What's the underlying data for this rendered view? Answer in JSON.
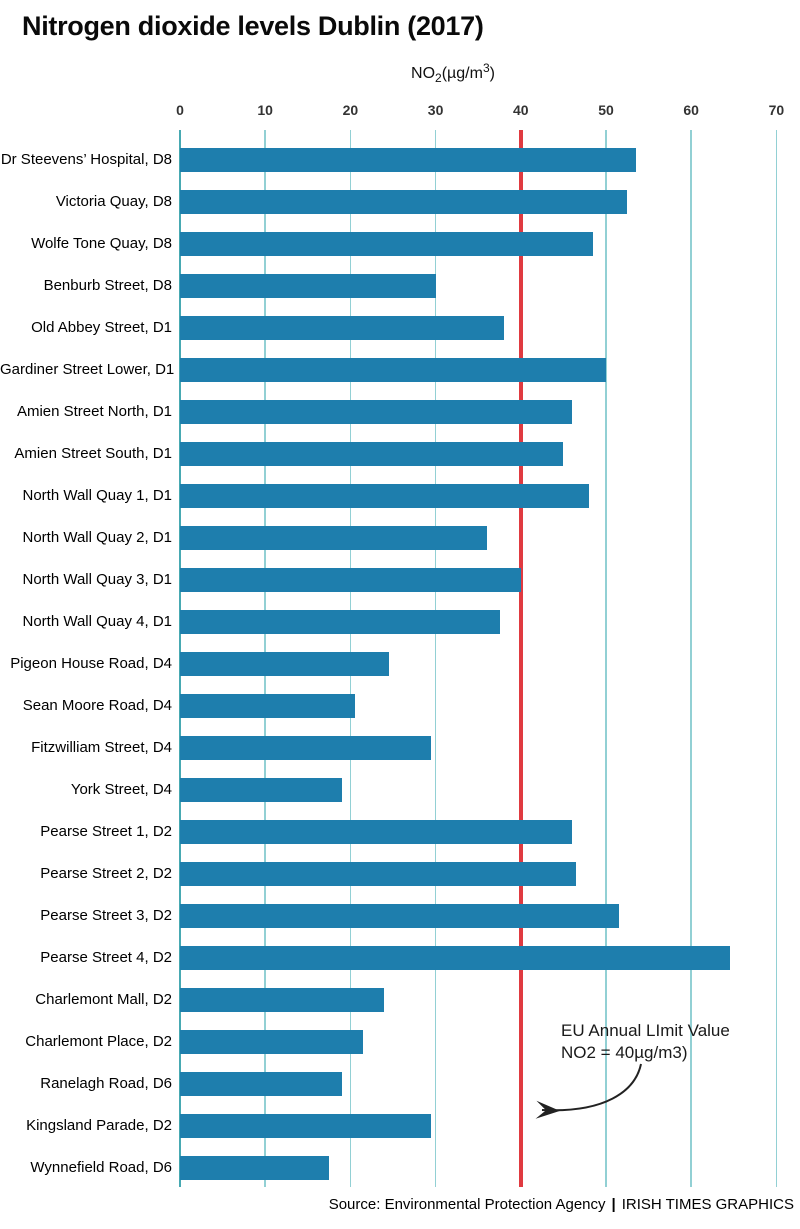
{
  "title": "Nitrogen dioxide levels Dublin (2017)",
  "axis_title": {
    "prefix": "NO",
    "sub": "2",
    "mid": "(µg/m",
    "sup": "3",
    "suffix": ")"
  },
  "chart_data": {
    "type": "bar",
    "orientation": "horizontal",
    "title": "Nitrogen dioxide levels Dublin (2017)",
    "xlabel": "NO2(µg/m3)",
    "xlim": [
      0,
      70
    ],
    "ticks": [
      0,
      10,
      20,
      30,
      40,
      50,
      60,
      70
    ],
    "grid": true,
    "bar_color": "#1e7ead",
    "gridline_color": "#92d0d4",
    "categories": [
      "Dr Steevens’ Hospital, D8",
      "Victoria Quay, D8",
      "Wolfe Tone Quay, D8",
      "Benburb Street, D8",
      "Old Abbey Street, D1",
      "Gardiner Street Lower, D1",
      "Amien Street North, D1",
      "Amien Street South, D1",
      "North Wall Quay 1, D1",
      "North Wall Quay 2, D1",
      "North Wall Quay 3, D1",
      "North Wall Quay 4, D1",
      "Pigeon House Road, D4",
      "Sean Moore Road, D4",
      "Fitzwilliam Street, D4",
      "York Street, D4",
      "Pearse Street 1, D2",
      "Pearse Street 2, D2",
      "Pearse Street 3, D2",
      "Pearse Street 4, D2",
      "Charlemont Mall, D2",
      "Charlemont Place, D2",
      "Ranelagh Road, D6",
      "Kingsland Parade, D2",
      "Wynnefield Road, D6"
    ],
    "values": [
      53.5,
      52.5,
      48.5,
      30,
      38,
      50,
      46,
      45,
      48,
      36,
      40,
      37.5,
      24.5,
      20.5,
      29.5,
      19,
      46,
      46.5,
      51.5,
      64.5,
      24,
      21.5,
      19,
      29.5,
      17.5
    ],
    "reference_line": {
      "value": 40,
      "color": "#e03a40",
      "label": "EU Annual LImit Value NO2 = 40µg/m3)"
    }
  },
  "annotation": {
    "line1": "EU Annual LImit Value",
    "line2": "NO2 = 40µg/m3)"
  },
  "source": {
    "text": "Source: Environmental Protection Agency",
    "separator": "|",
    "credit": "IRISH TIMES GRAPHICS"
  }
}
